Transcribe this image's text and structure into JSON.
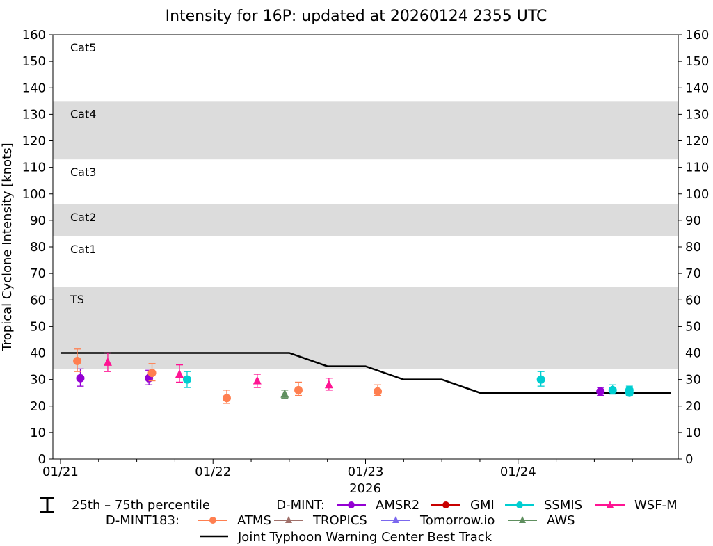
{
  "chart_data": {
    "type": "scatter",
    "title": "Intensity for 16P: updated at 20260124 2355 UTC",
    "ylabel": "Tropical Cyclone Intensity [knots]",
    "xlabel": "2026",
    "ylim": [
      0,
      160
    ],
    "xlim_days": [
      -0.05,
      4.05
    ],
    "yticks": [
      0,
      10,
      20,
      30,
      40,
      50,
      60,
      70,
      80,
      90,
      100,
      110,
      120,
      130,
      140,
      150,
      160
    ],
    "xticks": [
      {
        "day": 0,
        "label": "01/21"
      },
      {
        "day": 1,
        "label": "01/22"
      },
      {
        "day": 2,
        "label": "01/23"
      },
      {
        "day": 3,
        "label": "01/24"
      }
    ],
    "minor_xticks": [
      0.25,
      0.5,
      0.75,
      1.25,
      1.5,
      1.75,
      2.25,
      2.5,
      2.75,
      3.25,
      3.5,
      3.75
    ],
    "bands": [
      {
        "label": "TS",
        "low": 34,
        "high": 65,
        "shaded": true
      },
      {
        "label": "Cat1",
        "low": 65,
        "high": 84,
        "shaded": false
      },
      {
        "label": "Cat2",
        "low": 84,
        "high": 96,
        "shaded": true
      },
      {
        "label": "Cat3",
        "low": 96,
        "high": 113,
        "shaded": false
      },
      {
        "label": "Cat4",
        "low": 113,
        "high": 135,
        "shaded": true
      },
      {
        "label": "Cat5",
        "low": 135,
        "high": 160,
        "shaded": false
      }
    ],
    "band_color": "#dcdcdc",
    "best_track": {
      "name": "Joint Typhoon Warning Center Best Track",
      "color": "#000000",
      "points": [
        [
          0.0,
          40
        ],
        [
          1.5,
          40
        ],
        [
          1.75,
          35
        ],
        [
          2.0,
          35
        ],
        [
          2.25,
          30
        ],
        [
          2.5,
          30
        ],
        [
          2.75,
          25
        ],
        [
          4.0,
          25
        ]
      ]
    },
    "series": [
      {
        "name": "AMSR2",
        "group": "D-MINT",
        "color": "#9400d3",
        "marker": "circle",
        "points": [
          {
            "x": 0.13,
            "y": 30.5,
            "lo": 27.5,
            "hi": 34
          },
          {
            "x": 0.58,
            "y": 30.5,
            "lo": 28,
            "hi": 33.5
          },
          {
            "x": 3.54,
            "y": 25.5,
            "lo": 24,
            "hi": 27
          }
        ]
      },
      {
        "name": "GMI",
        "group": "D-MINT",
        "color": "#c80000",
        "marker": "circle",
        "points": []
      },
      {
        "name": "SSMIS",
        "group": "D-MINT",
        "color": "#00ced1",
        "marker": "circle",
        "points": [
          {
            "x": 0.83,
            "y": 30,
            "lo": 27,
            "hi": 33
          },
          {
            "x": 3.15,
            "y": 30,
            "lo": 27.5,
            "hi": 33
          },
          {
            "x": 3.62,
            "y": 26,
            "lo": 24.5,
            "hi": 28
          },
          {
            "x": 3.73,
            "y": 26,
            "lo": 24.5,
            "hi": 27.5
          },
          {
            "x": 3.73,
            "y": 25,
            "lo": 24,
            "hi": 26
          }
        ]
      },
      {
        "name": "WSF-M",
        "group": "D-MINT",
        "color": "#ff1493",
        "marker": "triangle",
        "points": [
          {
            "x": 0.31,
            "y": 36.5,
            "lo": 33,
            "hi": 40
          },
          {
            "x": 0.78,
            "y": 32,
            "lo": 29,
            "hi": 35.5
          },
          {
            "x": 1.29,
            "y": 29.5,
            "lo": 27,
            "hi": 32
          },
          {
            "x": 1.76,
            "y": 28,
            "lo": 26,
            "hi": 30.5
          }
        ]
      },
      {
        "name": "ATMS",
        "group": "D-MINT183",
        "color": "#ff7f50",
        "marker": "circle",
        "points": [
          {
            "x": 0.11,
            "y": 37,
            "lo": 33,
            "hi": 41.5
          },
          {
            "x": 0.6,
            "y": 32.5,
            "lo": 29.5,
            "hi": 36
          },
          {
            "x": 1.09,
            "y": 23,
            "lo": 21,
            "hi": 26
          },
          {
            "x": 1.56,
            "y": 26,
            "lo": 24,
            "hi": 29
          },
          {
            "x": 2.08,
            "y": 25.5,
            "lo": 24,
            "hi": 28
          }
        ]
      },
      {
        "name": "TROPICS",
        "group": "D-MINT183",
        "color": "#a0706a",
        "marker": "triangle",
        "points": []
      },
      {
        "name": "Tomorrow.io",
        "group": "D-MINT183",
        "color": "#7b68ee",
        "marker": "triangle",
        "points": []
      },
      {
        "name": "AWS",
        "group": "D-MINT183",
        "color": "#5f8f5f",
        "marker": "triangle",
        "points": [
          {
            "x": 1.47,
            "y": 24.5,
            "lo": 23,
            "hi": 26
          }
        ]
      }
    ],
    "legend": {
      "percentile_label": "25th – 75th percentile",
      "dmint_label": "D-MINT:",
      "dmint183_label": "D-MINT183:",
      "position": "bottom-center"
    }
  }
}
